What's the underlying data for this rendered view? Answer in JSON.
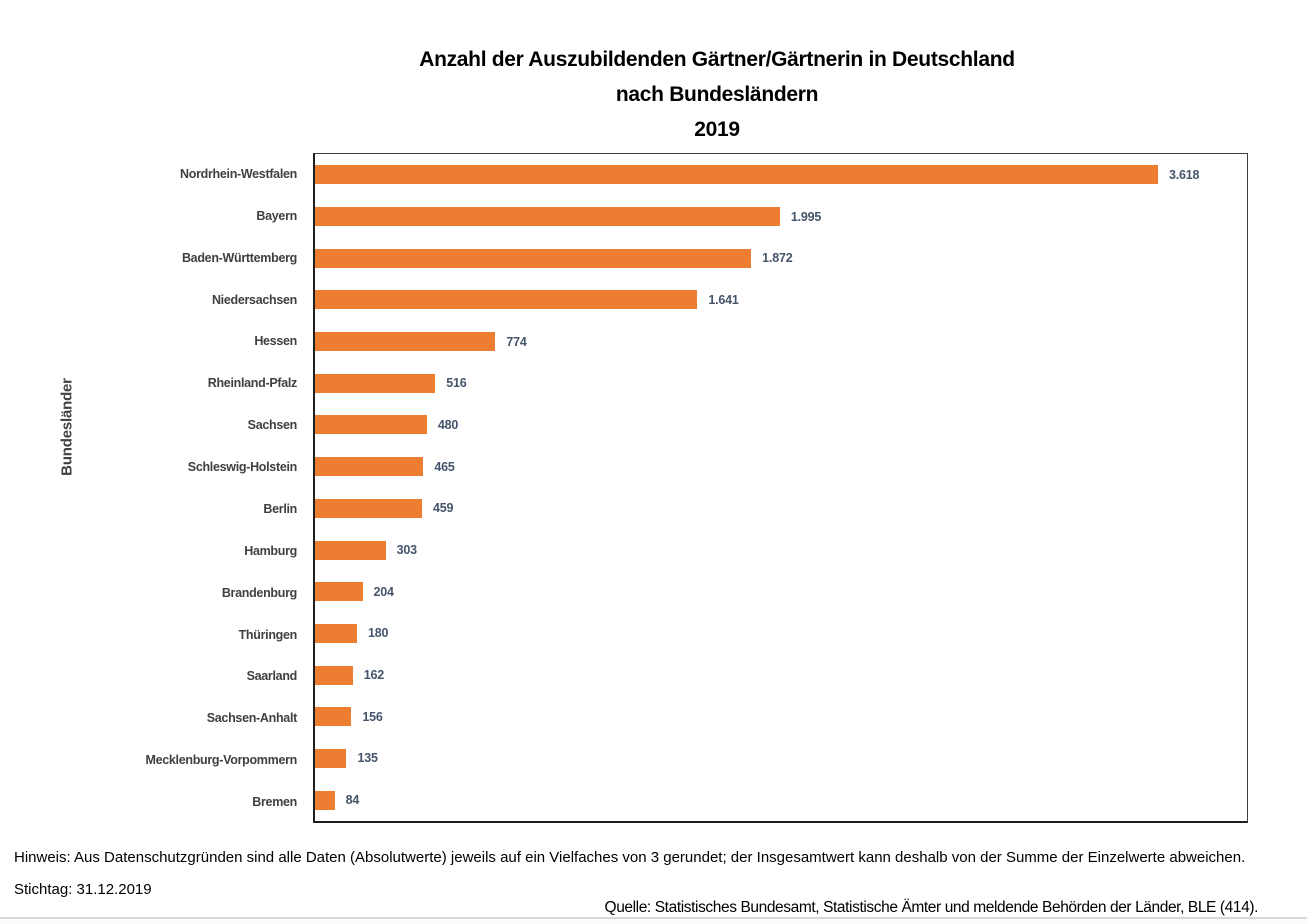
{
  "title": {
    "line1": "Anzahl der Auszubildenden Gärtner/Gärtnerin in Deutschland",
    "line2": "nach Bundesländern",
    "line3": "2019"
  },
  "y_axis_title": "Bundesländer",
  "chart_data": {
    "type": "bar",
    "orientation": "horizontal",
    "title": "Anzahl der Auszubildenden Gärtner/Gärtnerin in Deutschland nach Bundesländern 2019",
    "xlabel": "",
    "ylabel": "Bundesländer",
    "xlim": [
      0,
      4000
    ],
    "grid": false,
    "legend": false,
    "data_labels": "outside-end",
    "categories": [
      "Nordrhein-Westfalen",
      "Bayern",
      "Baden-Württemberg",
      "Niedersachsen",
      "Hessen",
      "Rheinland-Pfalz",
      "Sachsen",
      "Schleswig-Holstein",
      "Berlin",
      "Hamburg",
      "Brandenburg",
      "Thüringen",
      "Saarland",
      "Sachsen-Anhalt",
      "Mecklenburg-Vorpommern",
      "Bremen"
    ],
    "values": [
      3618,
      1995,
      1872,
      1641,
      774,
      516,
      480,
      465,
      459,
      303,
      204,
      180,
      162,
      156,
      135,
      84
    ],
    "value_labels": [
      "3.618",
      "1.995",
      "1.872",
      "1.641",
      "774",
      "516",
      "480",
      "465",
      "459",
      "303",
      "204",
      "180",
      "162",
      "156",
      "135",
      "84"
    ]
  },
  "footer": {
    "hinweis": "Hinweis: Aus Datenschutzgründen sind alle Daten (Absolutwerte) jeweils auf ein Vielfaches von 3 gerundet; der Insgesamtwert kann deshalb von der Summe der Einzelwerte abweichen.",
    "stichtag": "Stichtag: 31.12.2019",
    "quelle": "Quelle: Statistisches Bundesamt, Statistische Ämter und meldende Behörden der Länder, BLE (414)."
  },
  "colors": {
    "bar": "#ED7D31",
    "category_label": "#404040",
    "value_label": "#44546A",
    "title_text": "#000000",
    "plot_border": "#3F3F3F",
    "bottom_divider": "#D8D8D8"
  }
}
